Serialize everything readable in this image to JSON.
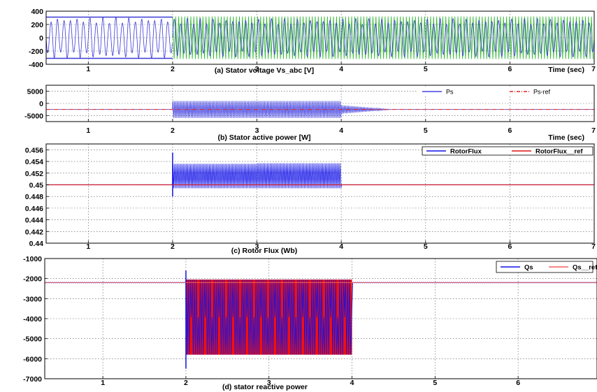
{
  "chart_data": [
    {
      "type": "line",
      "title": "(a)   Stator voltage Vs_abc [V]",
      "xlabel": "Time (sec)",
      "xlim": [
        0.5,
        7
      ],
      "ylim": [
        -400,
        400
      ],
      "xticks": [
        "1",
        "2",
        "3",
        "4",
        "5",
        "6",
        "7"
      ],
      "yticks": [
        "400",
        "200",
        "0",
        "-200",
        "-400"
      ],
      "grid": true,
      "legend": null,
      "series": [
        {
          "color": "#3a3ad8",
          "segments": [
            {
              "x0": 0.5,
              "x1": 2,
              "amplitude": 310,
              "style": "three-phase"
            },
            {
              "x0": 2,
              "x1": 7,
              "amplitude": 290,
              "style": "three-phase"
            }
          ]
        },
        {
          "color": "#35b835",
          "segments": [
            {
              "x0": 2,
              "x1": 7,
              "amplitude": 320,
              "style": "envelope"
            }
          ]
        }
      ]
    },
    {
      "type": "line",
      "title": "(b) Stator active power [W]",
      "xlabel": "Time (sec)",
      "xlim": [
        0.5,
        7
      ],
      "ylim": [
        -7500,
        7500
      ],
      "xticks": [
        "1",
        "2",
        "3",
        "4",
        "5",
        "6",
        "7"
      ],
      "yticks": [
        "5000",
        "0",
        "-5000"
      ],
      "grid": true,
      "legend": "top-right",
      "series": [
        {
          "name": "Ps",
          "color": "#4040e0",
          "mean": -2500,
          "oscillation": [
            {
              "x0": 2,
              "x1": 4,
              "min": -6000,
              "max": 1000
            }
          ],
          "damping_end": 4.6
        },
        {
          "name": "Ps-ref",
          "color": "#e02020",
          "style": "dash-dot",
          "value": -2500
        }
      ]
    },
    {
      "type": "line",
      "title": "(c) Rotor Flux (Wb)",
      "xlabel": "",
      "xlim": [
        0.5,
        7
      ],
      "ylim": [
        0.44,
        0.457
      ],
      "xticks": [
        "1",
        "2",
        "3",
        "4",
        "5",
        "6",
        "7"
      ],
      "yticks": [
        "0.456",
        "0.454",
        "0.452",
        "0.45",
        "0.448",
        "0.446",
        "0.444",
        "0.442",
        "0.44"
      ],
      "grid": true,
      "legend": "top-right",
      "series": [
        {
          "name": "RotorFlux",
          "color": "#1010e8",
          "mean": 0.45,
          "oscillation": [
            {
              "x0": 2,
              "x1": 3,
              "min": 0.4494,
              "max": 0.4536
            },
            {
              "x0": 3,
              "x1": 4,
              "min": 0.4494,
              "max": 0.4537
            }
          ],
          "spike": {
            "x": 2,
            "min": 0.448,
            "max": 0.4555
          }
        },
        {
          "name": "RotorFlux__ref",
          "color": "#e01010",
          "value": 0.45
        }
      ]
    },
    {
      "type": "line",
      "title": "(d) stator reactive power",
      "xlabel": "",
      "xlim": [
        0.3,
        6.95
      ],
      "ylim": [
        -7000,
        -1000
      ],
      "xticks": [
        "1",
        "2",
        "3",
        "4",
        "5",
        "6"
      ],
      "yticks": [
        "-1000",
        "-2000",
        "-3000",
        "-4000",
        "-5000",
        "-6000",
        "-7000"
      ],
      "grid": true,
      "legend": "top-right",
      "series": [
        {
          "name": "Qs",
          "color": "#1010e8",
          "mean": -2200,
          "oscillation": [
            {
              "x0": 2,
              "x1": 4,
              "min": -5800,
              "max": -2050
            }
          ],
          "spike": {
            "x": 2,
            "min": -6500,
            "max": -1600
          }
        },
        {
          "name": "Qs__ref",
          "color": "#f06060",
          "value": -2200
        }
      ]
    }
  ]
}
